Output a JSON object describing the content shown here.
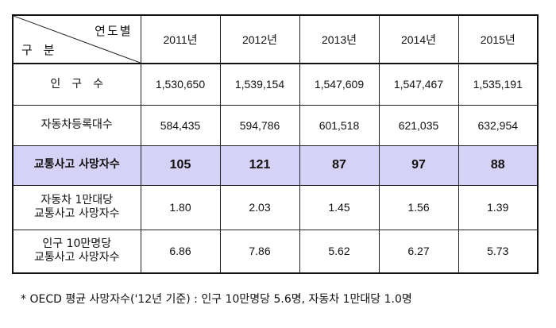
{
  "table": {
    "corner_top": "연도별",
    "corner_bottom": "구분",
    "years": [
      "2011년",
      "2012년",
      "2013년",
      "2014년",
      "2015년"
    ],
    "rows": [
      {
        "label": "인구수",
        "values": [
          "1,530,650",
          "1,539,154",
          "1,547,609",
          "1,547,467",
          "1,535,191"
        ]
      },
      {
        "label": "자동차등록대수",
        "values": [
          "584,435",
          "594,786",
          "601,518",
          "621,035",
          "632,954"
        ]
      },
      {
        "label": "교통사고 사망자수",
        "values": [
          "105",
          "121",
          "87",
          "97",
          "88"
        ],
        "highlight_color": "#d6d2f5"
      },
      {
        "label_line1": "자동차 1만대당",
        "label_line2": "교통사고 사망자수",
        "values": [
          "1.80",
          "2.03",
          "1.45",
          "1.56",
          "1.39"
        ]
      },
      {
        "label_line1": "인구 10만명당",
        "label_line2": "교통사고 사망자수",
        "values": [
          "6.86",
          "7.86",
          "5.62",
          "6.27",
          "5.73"
        ]
      }
    ]
  },
  "footnote": "* OECD 평균 사망자수('12년 기준) : 인구 10만명당 5.6명, 자동차 1만대당 1.0명"
}
